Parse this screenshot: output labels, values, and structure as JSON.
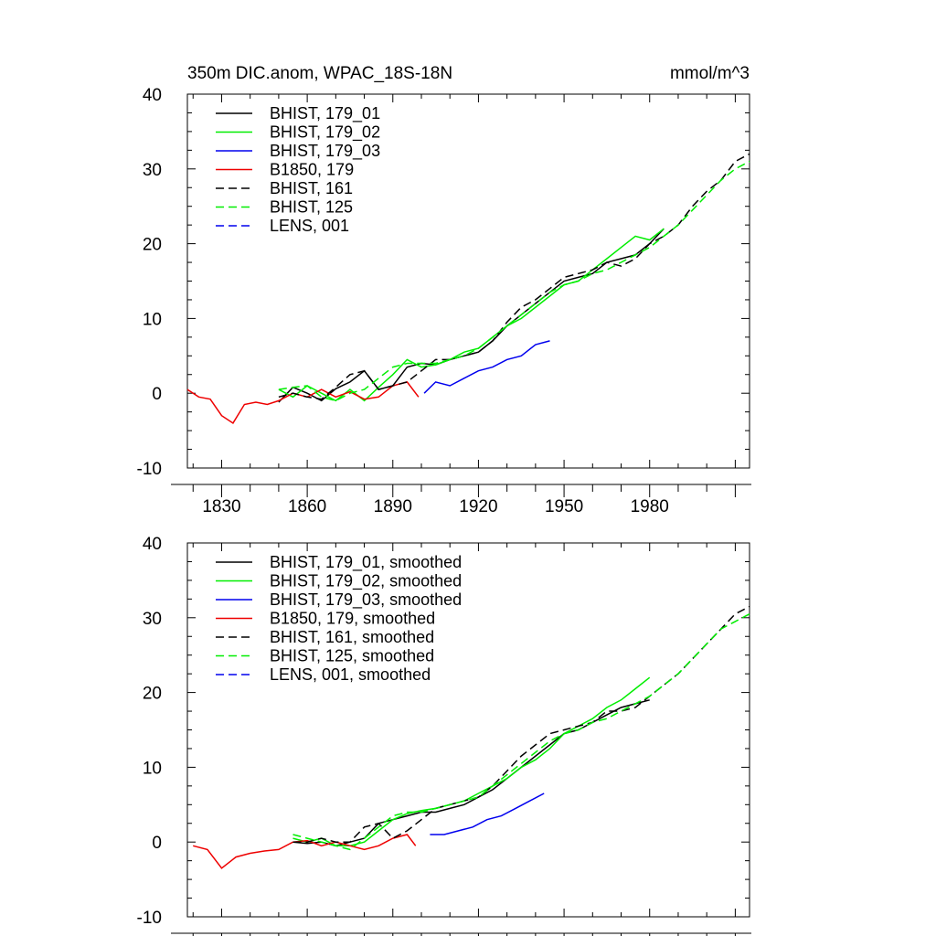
{
  "chart_data": [
    {
      "type": "line",
      "title": "350m DIC.anom, WPAC_18S-18N",
      "units": "mmol/m^3",
      "xlim": [
        1818,
        2015
      ],
      "ylim": [
        -10,
        40
      ],
      "yticks": [
        -10,
        0,
        10,
        20,
        30,
        40
      ],
      "xticks": [
        1830,
        1860,
        1890,
        1920,
        1950,
        1980
      ],
      "x_tick_labels": [
        "1830",
        "1860",
        "1890",
        "1920",
        "1950",
        "1980"
      ],
      "legend_position": "top-left",
      "series": [
        {
          "name": "BHIST, 179_01",
          "color": "#000000",
          "dash": "solid",
          "x": [
            1850,
            1855,
            1860,
            1865,
            1870,
            1875,
            1880,
            1885,
            1890,
            1895,
            1900,
            1905,
            1910,
            1915,
            1920,
            1925,
            1930,
            1935,
            1940,
            1945,
            1950,
            1955,
            1960,
            1965,
            1970,
            1975,
            1980,
            1985
          ],
          "y": [
            -1.2,
            0.8,
            0.0,
            -1.0,
            0.6,
            1.5,
            3.0,
            0.5,
            1.0,
            3.5,
            4.0,
            3.8,
            4.5,
            5.0,
            5.5,
            7.0,
            9.0,
            10.5,
            12.0,
            13.5,
            15.0,
            15.5,
            16.0,
            17.5,
            18.0,
            18.5,
            20.0,
            22.0
          ]
        },
        {
          "name": "BHIST, 179_02",
          "color": "#00ee00",
          "dash": "solid",
          "x": [
            1850,
            1855,
            1860,
            1865,
            1870,
            1875,
            1880,
            1885,
            1890,
            1895,
            1900,
            1905,
            1910,
            1915,
            1920,
            1925,
            1930,
            1935,
            1940,
            1945,
            1950,
            1955,
            1960,
            1965,
            1970,
            1975,
            1980,
            1985
          ],
          "y": [
            0.5,
            -0.5,
            1.0,
            0.0,
            -1.0,
            0.5,
            -1.0,
            0.8,
            2.5,
            4.5,
            3.5,
            3.8,
            4.5,
            5.5,
            6.0,
            7.5,
            9.0,
            10.0,
            11.5,
            13.0,
            14.5,
            15.0,
            16.5,
            18.0,
            19.5,
            21.0,
            20.5,
            22.0
          ]
        },
        {
          "name": "BHIST, 179_03",
          "color": "#0000ee",
          "dash": "solid",
          "x": [
            1901,
            1905,
            1910,
            1915,
            1920,
            1925,
            1930,
            1935,
            1940,
            1945
          ],
          "y": [
            0.0,
            1.5,
            1.0,
            2.0,
            3.0,
            3.5,
            4.5,
            5.0,
            6.5,
            7.0
          ]
        },
        {
          "name": "B1850, 179",
          "color": "#ee0000",
          "dash": "solid",
          "x": [
            1818,
            1822,
            1826,
            1830,
            1834,
            1838,
            1842,
            1846,
            1850,
            1855,
            1860,
            1865,
            1870,
            1875,
            1880,
            1885,
            1890,
            1895,
            1899
          ],
          "y": [
            0.5,
            -0.5,
            -0.8,
            -3.0,
            -4.0,
            -1.5,
            -1.2,
            -1.5,
            -1.0,
            0.0,
            -0.5,
            0.5,
            -0.5,
            0.2,
            -0.8,
            -0.5,
            1.0,
            1.5,
            -0.5
          ]
        },
        {
          "name": "BHIST, 161",
          "color": "#000000",
          "dash": "dashed",
          "x": [
            1850,
            1855,
            1860,
            1865,
            1870,
            1875,
            1880,
            1885,
            1890,
            1895,
            1900,
            1905,
            1910,
            1915,
            1920,
            1925,
            1930,
            1935,
            1940,
            1945,
            1950,
            1955,
            1960,
            1965,
            1970,
            1975,
            1980,
            1985,
            1990,
            1995,
            2000,
            2005,
            2010,
            2015
          ],
          "y": [
            -0.5,
            0.0,
            -0.5,
            -0.8,
            0.8,
            2.5,
            3.0,
            0.5,
            1.0,
            1.5,
            3.0,
            4.5,
            4.5,
            5.0,
            5.5,
            7.0,
            9.5,
            11.5,
            12.5,
            14.0,
            15.5,
            16.0,
            16.5,
            17.5,
            17.0,
            18.0,
            20.0,
            21.0,
            22.5,
            25.0,
            27.0,
            28.5,
            31.0,
            32.0
          ]
        },
        {
          "name": "BHIST, 125",
          "color": "#00ee00",
          "dash": "dashed",
          "x": [
            1850,
            1855,
            1860,
            1865,
            1870,
            1875,
            1880,
            1885,
            1890,
            1895,
            1900,
            1905,
            1910,
            1915,
            1920,
            1925,
            1930,
            1935,
            1940,
            1945,
            1950,
            1955,
            1960,
            1965,
            1970,
            1975,
            1980,
            1985,
            1990,
            1995,
            2000,
            2005,
            2010,
            2015
          ],
          "y": [
            0.5,
            0.8,
            1.0,
            -0.5,
            -1.0,
            0.0,
            0.5,
            2.0,
            3.5,
            4.0,
            4.0,
            4.0,
            4.5,
            5.0,
            6.0,
            7.5,
            9.0,
            10.5,
            12.0,
            13.5,
            14.5,
            15.0,
            16.0,
            16.5,
            17.5,
            18.5,
            19.5,
            21.0,
            22.5,
            24.5,
            26.5,
            28.5,
            30.0,
            31.0
          ]
        },
        {
          "name": "LENS, 001",
          "color": "#0000ee",
          "dash": "dashed",
          "x": [],
          "y": []
        }
      ]
    },
    {
      "type": "line",
      "title": "",
      "units": "",
      "xlim": [
        1818,
        2015
      ],
      "ylim": [
        -10,
        40
      ],
      "yticks": [
        -10,
        0,
        10,
        20,
        30,
        40
      ],
      "xticks": [
        1830,
        1860,
        1890,
        1920,
        1950,
        1980
      ],
      "x_tick_labels": [],
      "legend_position": "top-left",
      "series": [
        {
          "name": "BHIST, 179_01, smoothed",
          "color": "#000000",
          "dash": "solid",
          "x": [
            1855,
            1860,
            1865,
            1870,
            1875,
            1880,
            1885,
            1890,
            1895,
            1900,
            1905,
            1910,
            1915,
            1920,
            1925,
            1930,
            1935,
            1940,
            1945,
            1950,
            1955,
            1960,
            1965,
            1970,
            1975,
            1980
          ],
          "y": [
            0.0,
            -0.2,
            0.0,
            -0.5,
            0.0,
            0.5,
            2.5,
            3.0,
            3.5,
            4.0,
            4.0,
            4.5,
            5.0,
            6.0,
            7.0,
            8.5,
            10.0,
            11.5,
            13.0,
            14.5,
            15.0,
            16.0,
            17.0,
            18.0,
            18.5,
            19.0
          ]
        },
        {
          "name": "BHIST, 179_02, smoothed",
          "color": "#00ee00",
          "dash": "solid",
          "x": [
            1855,
            1860,
            1865,
            1870,
            1875,
            1880,
            1885,
            1890,
            1895,
            1900,
            1905,
            1910,
            1915,
            1920,
            1925,
            1930,
            1935,
            1940,
            1945,
            1950,
            1955,
            1960,
            1965,
            1970,
            1975,
            1980
          ],
          "y": [
            0.5,
            0.0,
            0.5,
            -0.5,
            -0.5,
            0.0,
            1.5,
            3.0,
            3.8,
            4.2,
            4.5,
            5.0,
            5.5,
            6.5,
            7.5,
            8.5,
            10.0,
            11.0,
            12.5,
            14.5,
            15.5,
            16.5,
            18.0,
            19.0,
            20.5,
            22.0
          ]
        },
        {
          "name": "BHIST, 179_03, smoothed",
          "color": "#0000ee",
          "dash": "solid",
          "x": [
            1903,
            1908,
            1913,
            1918,
            1923,
            1928,
            1933,
            1938,
            1943
          ],
          "y": [
            1.0,
            1.0,
            1.5,
            2.0,
            3.0,
            3.5,
            4.5,
            5.5,
            6.5
          ]
        },
        {
          "name": "B1850, 179, smoothed",
          "color": "#ee0000",
          "dash": "solid",
          "x": [
            1820,
            1825,
            1830,
            1835,
            1840,
            1845,
            1850,
            1855,
            1860,
            1865,
            1870,
            1875,
            1880,
            1885,
            1890,
            1895,
            1898
          ],
          "y": [
            -0.5,
            -1.0,
            -3.5,
            -2.0,
            -1.5,
            -1.2,
            -1.0,
            0.0,
            0.2,
            -0.5,
            0.0,
            -0.5,
            -1.0,
            -0.5,
            0.5,
            1.0,
            -0.5
          ]
        },
        {
          "name": "BHIST, 161, smoothed",
          "color": "#000000",
          "dash": "dashed",
          "x": [
            1855,
            1860,
            1865,
            1870,
            1875,
            1880,
            1885,
            1890,
            1895,
            1900,
            1905,
            1910,
            1915,
            1920,
            1925,
            1930,
            1935,
            1940,
            1945,
            1950,
            1955,
            1960,
            1965,
            1970,
            1975,
            1980,
            1985,
            1990,
            1995,
            2000,
            2005,
            2010,
            2015
          ],
          "y": [
            0.0,
            0.0,
            0.5,
            0.0,
            0.0,
            2.0,
            2.5,
            0.5,
            1.5,
            3.0,
            4.5,
            5.0,
            5.5,
            6.0,
            7.5,
            9.5,
            11.5,
            13.0,
            14.5,
            15.0,
            15.5,
            16.0,
            17.5,
            17.5,
            18.0,
            19.5,
            21.0,
            22.5,
            24.5,
            26.5,
            28.5,
            30.5,
            31.5
          ]
        },
        {
          "name": "BHIST, 125, smoothed",
          "color": "#00ee00",
          "dash": "dashed",
          "x": [
            1855,
            1860,
            1865,
            1870,
            1875,
            1880,
            1885,
            1890,
            1895,
            1900,
            1905,
            1910,
            1915,
            1920,
            1925,
            1930,
            1935,
            1940,
            1945,
            1950,
            1955,
            1960,
            1965,
            1970,
            1975,
            1980,
            1985,
            1990,
            1995,
            2000,
            2005,
            2010,
            2015
          ],
          "y": [
            1.0,
            0.5,
            0.0,
            -0.5,
            -1.0,
            0.5,
            2.0,
            3.5,
            4.0,
            4.0,
            4.5,
            5.0,
            5.5,
            6.0,
            7.5,
            9.0,
            10.5,
            12.0,
            13.5,
            14.5,
            15.0,
            16.0,
            16.5,
            17.5,
            18.5,
            19.5,
            21.0,
            22.5,
            24.5,
            26.5,
            28.5,
            29.5,
            30.5
          ]
        },
        {
          "name": "LENS, 001, smoothed",
          "color": "#0000ee",
          "dash": "dashed",
          "x": [],
          "y": []
        }
      ]
    }
  ]
}
